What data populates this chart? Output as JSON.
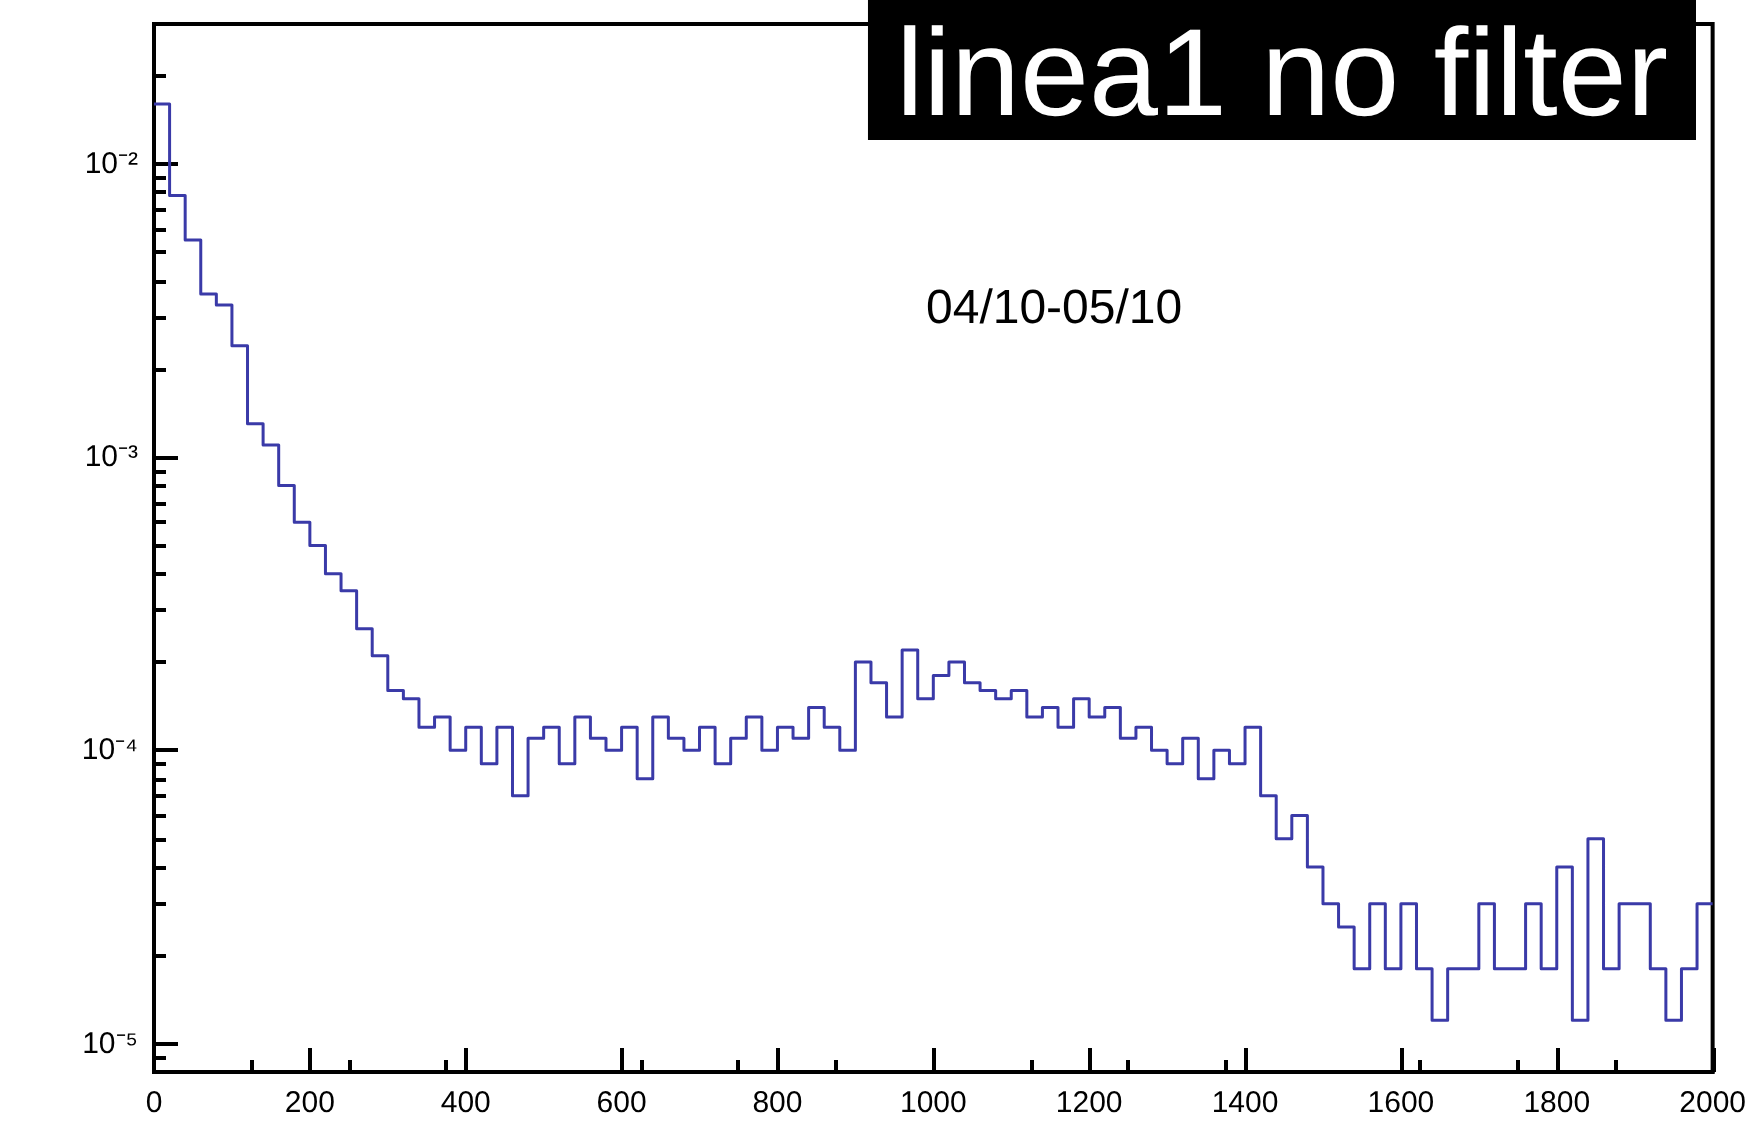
{
  "chart_data": {
    "type": "histogram",
    "title": "linea1 no filter",
    "annotations": [
      "04/10-05/10"
    ],
    "color": "#3a3aa8",
    "bins": [
      0,
      20,
      40,
      60,
      80,
      100,
      120,
      140,
      160,
      180,
      200,
      220,
      240,
      260,
      280,
      300,
      320,
      340,
      360,
      380,
      400,
      420,
      440,
      460,
      480,
      500,
      520,
      540,
      560,
      580,
      600,
      620,
      640,
      660,
      680,
      700,
      720,
      740,
      760,
      780,
      800,
      820,
      840,
      860,
      880,
      900,
      920,
      940,
      960,
      980,
      1000,
      1020,
      1040,
      1060,
      1080,
      1100,
      1120,
      1140,
      1160,
      1180,
      1200,
      1220,
      1240,
      1260,
      1280,
      1300,
      1320,
      1340,
      1360,
      1380,
      1400,
      1420,
      1440,
      1460,
      1480,
      1500,
      1520,
      1540,
      1560,
      1580,
      1600,
      1620,
      1640,
      1660,
      1680,
      1700,
      1720,
      1740,
      1760,
      1780,
      1800,
      1820,
      1840,
      1860,
      1880,
      1900,
      1920,
      1940,
      1960,
      1980,
      2000
    ],
    "values": [
      0.016,
      0.0078,
      0.0055,
      0.0036,
      0.0033,
      0.0024,
      0.0013,
      0.0011,
      0.0008,
      0.0006,
      0.0005,
      0.0004,
      0.00035,
      0.00026,
      0.00021,
      0.00016,
      0.00015,
      0.00012,
      0.00013,
      0.0001,
      0.00012,
      9e-05,
      0.00012,
      7e-05,
      0.00011,
      0.00012,
      9e-05,
      0.00013,
      0.00011,
      0.0001,
      0.00012,
      8e-05,
      0.00013,
      0.00011,
      0.0001,
      0.00012,
      9e-05,
      0.00011,
      0.00013,
      0.0001,
      0.00012,
      0.00011,
      0.00014,
      0.00012,
      0.0001,
      0.0002,
      0.00017,
      0.00013,
      0.00022,
      0.00015,
      0.00018,
      0.0002,
      0.00017,
      0.00016,
      0.00015,
      0.00016,
      0.00013,
      0.00014,
      0.00012,
      0.00015,
      0.00013,
      0.00014,
      0.00011,
      0.00012,
      0.0001,
      9e-05,
      0.00011,
      8e-05,
      0.0001,
      9e-05,
      0.00012,
      7e-05,
      5e-05,
      6e-05,
      4e-05,
      3e-05,
      2.5e-05,
      1.8e-05,
      3e-05,
      1.8e-05,
      3e-05,
      1.8e-05,
      1.2e-05,
      1.8e-05,
      1.8e-05,
      3e-05,
      1.8e-05,
      1.8e-05,
      3e-05,
      1.8e-05,
      4e-05,
      1.2e-05,
      5e-05,
      1.8e-05,
      3e-05,
      3e-05,
      1.8e-05,
      1.2e-05,
      1.8e-05,
      3e-05
    ],
    "log": "y",
    "xlim": [
      0,
      2000
    ],
    "xticks": [
      0,
      200,
      400,
      600,
      800,
      1000,
      1200,
      1400,
      1600,
      1800,
      2000
    ],
    "ylim": [
      8e-06,
      0.03
    ],
    "yticks": [
      {
        "value": 1e-05,
        "label": "10⁻⁵"
      },
      {
        "value": 0.0001,
        "label": "10⁻⁴"
      },
      {
        "value": 0.001,
        "label": "10⁻³"
      },
      {
        "value": 0.01,
        "label": "10⁻²"
      }
    ]
  }
}
